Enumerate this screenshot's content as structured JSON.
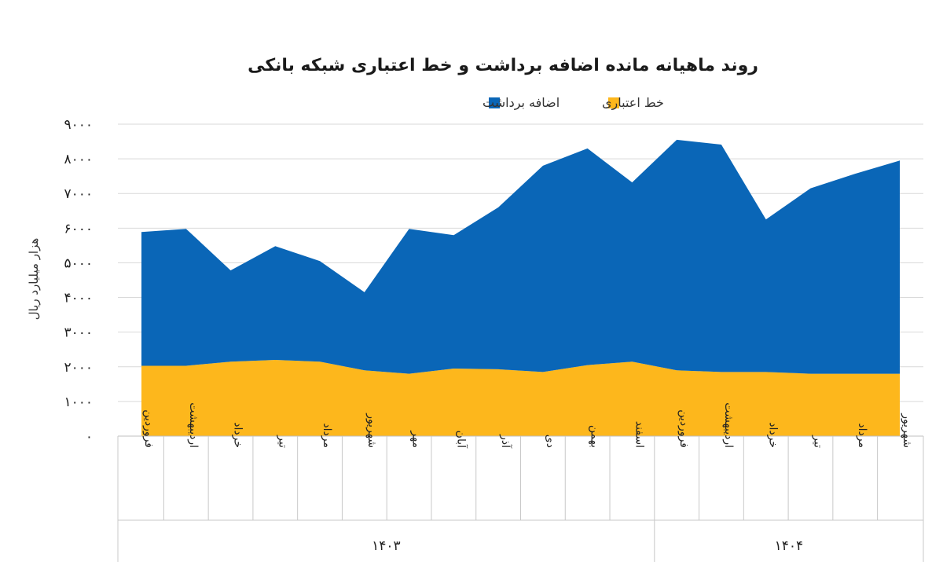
{
  "chart_data": {
    "type": "area",
    "stacked": true,
    "title": "روند ماهیانه مانده اضافه برداشت و خط اعتباری شبکه بانکی",
    "ylabel": "هزار میلیارد ریال",
    "xlabel": "",
    "ylim": [
      0,
      9000
    ],
    "yticks": [
      0,
      1000,
      2000,
      3000,
      4000,
      5000,
      6000,
      7000,
      8000,
      9000
    ],
    "ytick_labels": [
      "۰",
      "۱۰۰۰",
      "۲۰۰۰",
      "۳۰۰۰",
      "۴۰۰۰",
      "۵۰۰۰",
      "۶۰۰۰",
      "۷۰۰۰",
      "۸۰۰۰",
      "۹۰۰۰"
    ],
    "grid": true,
    "legend_position": "top",
    "categories": [
      "فروردین",
      "اردیبهشت",
      "خرداد",
      "تیر",
      "مرداد",
      "شهریور",
      "مهر",
      "آبان",
      "آذر",
      "دی",
      "بهمن",
      "اسفند",
      "فروردین",
      "اردیبهشت",
      "خرداد",
      "تیر",
      "مرداد",
      "شهریور"
    ],
    "year_groups": [
      {
        "label": "۱۴۰۳",
        "count": 12
      },
      {
        "label": "۱۴۰۴",
        "count": 6
      }
    ],
    "series": [
      {
        "name": "خط اعتباری",
        "color": "#fdb71c",
        "values": [
          2030,
          2030,
          2150,
          2200,
          2150,
          1900,
          1800,
          1950,
          1930,
          1850,
          2050,
          2150,
          1900,
          1850,
          1850,
          1800,
          1800,
          1800
        ]
      },
      {
        "name": "اضافه برداشت",
        "color": "#0a66b7",
        "values": [
          3860,
          3950,
          2630,
          3280,
          2900,
          2250,
          4180,
          3850,
          4670,
          5950,
          6250,
          5170,
          6650,
          6560,
          4400,
          5350,
          5770,
          6150
        ]
      }
    ]
  }
}
